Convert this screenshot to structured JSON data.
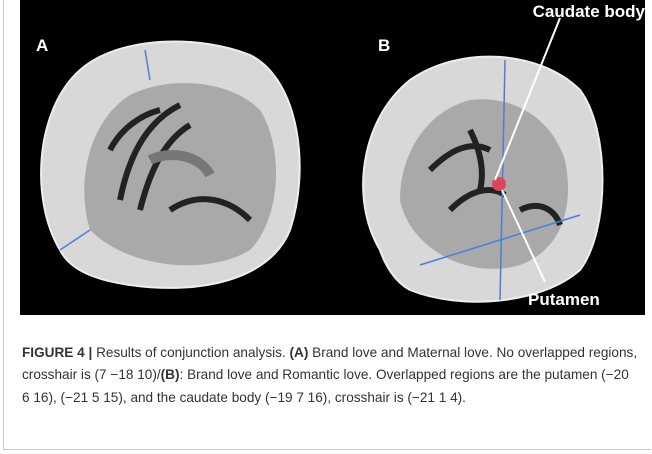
{
  "panels": [
    {
      "label": "A"
    },
    {
      "label": "B",
      "annotations": [
        "Caudate body",
        "Putamen"
      ]
    }
  ],
  "caption": {
    "figure_label": "FIGURE 4 |",
    "text_1": "Results of conjunction analysis.",
    "label_a": "(A)",
    "text_2": "Brand love and Maternal love. No overlapped regions, crosshair is (7 −18 10)/",
    "label_b": "(B)",
    "text_3": ": Brand love and Romantic love. Overlapped regions are the putamen (−20 6 16), (−21 5 15), and the caudate body (−19 7 16), crosshair is (−21 1 4)."
  }
}
